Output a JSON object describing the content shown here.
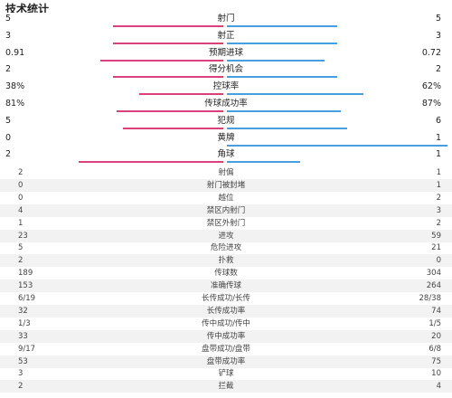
{
  "title": "技术统计",
  "colors": {
    "left": "#d9417a",
    "right": "#4a9ee0"
  },
  "bar_stats": [
    {
      "name": "射门",
      "left": "5",
      "right": "5",
      "left_frac": 0.5,
      "right_frac": 0.5
    },
    {
      "name": "射正",
      "left": "3",
      "right": "3",
      "left_frac": 0.5,
      "right_frac": 0.5
    },
    {
      "name": "预期进球",
      "left": "0.91",
      "right": "0.72",
      "left_frac": 0.558,
      "right_frac": 0.442
    },
    {
      "name": "得分机会",
      "left": "2",
      "right": "2",
      "left_frac": 0.5,
      "right_frac": 0.5
    },
    {
      "name": "控球率",
      "left": "38%",
      "right": "62%",
      "left_frac": 0.38,
      "right_frac": 0.62
    },
    {
      "name": "传球成功率",
      "left": "81%",
      "right": "87%",
      "left_frac": 0.482,
      "right_frac": 0.518
    },
    {
      "name": "犯规",
      "left": "5",
      "right": "6",
      "left_frac": 0.455,
      "right_frac": 0.545
    },
    {
      "name": "黄牌",
      "left": "0",
      "right": "1",
      "left_frac": 0.0,
      "right_frac": 1.0
    },
    {
      "name": "角球",
      "left": "2",
      "right": "1",
      "left_frac": 0.667,
      "right_frac": 0.333
    }
  ],
  "table_stats": [
    {
      "name": "射偏",
      "left": "2",
      "right": "1"
    },
    {
      "name": "射门被封堵",
      "left": "0",
      "right": "1"
    },
    {
      "name": "越位",
      "left": "0",
      "right": "2"
    },
    {
      "name": "禁区内射门",
      "left": "4",
      "right": "3"
    },
    {
      "name": "禁区外射门",
      "left": "1",
      "right": "2"
    },
    {
      "name": "进攻",
      "left": "23",
      "right": "59"
    },
    {
      "name": "危险进攻",
      "left": "5",
      "right": "21"
    },
    {
      "name": "扑救",
      "left": "2",
      "right": "0"
    },
    {
      "name": "传球数",
      "left": "189",
      "right": "304"
    },
    {
      "name": "准确传球",
      "left": "153",
      "right": "264"
    },
    {
      "name": "长传成功/长传",
      "left": "6/19",
      "right": "28/38"
    },
    {
      "name": "长传成功率",
      "left": "32",
      "right": "74"
    },
    {
      "name": "传中成功/传中",
      "left": "1/3",
      "right": "1/5"
    },
    {
      "name": "传中成功率",
      "left": "33",
      "right": "20"
    },
    {
      "name": "盘带成功/盘带",
      "left": "9/17",
      "right": "6/8"
    },
    {
      "name": "盘带成功率",
      "left": "53",
      "right": "75"
    },
    {
      "name": "铲球",
      "left": "3",
      "right": "10"
    },
    {
      "name": "拦截",
      "left": "2",
      "right": "4"
    }
  ]
}
